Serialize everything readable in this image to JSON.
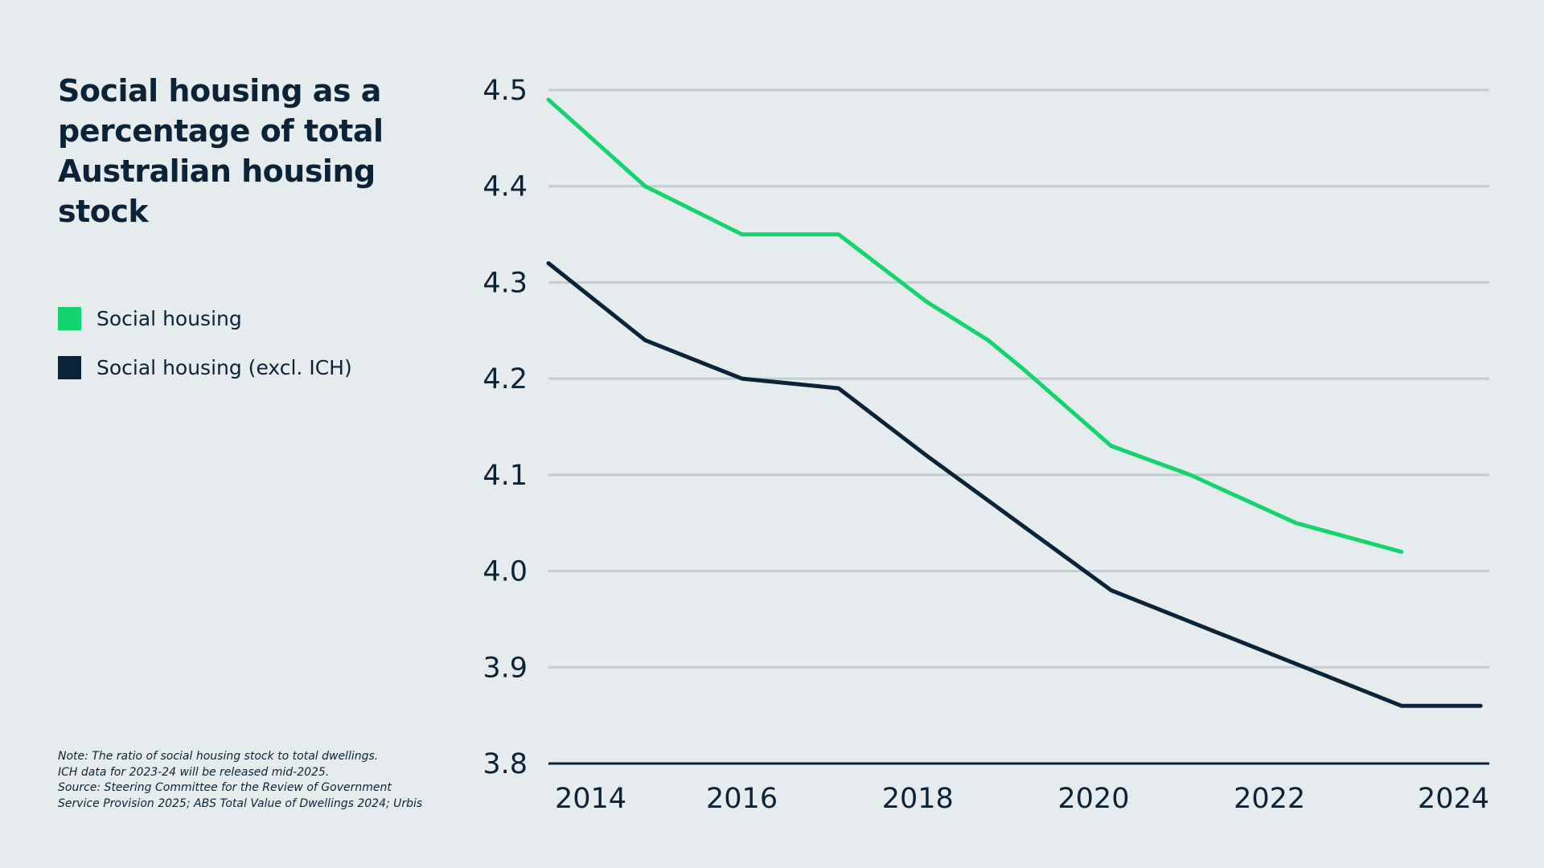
{
  "title": "Social housing as a percentage of total Australian housing stock",
  "legend": {
    "items": [
      {
        "label": "Social housing",
        "color": "#14d46e"
      },
      {
        "label": "Social housing (excl. ICH)",
        "color": "#0b2338"
      }
    ]
  },
  "note": {
    "lines": [
      "Note: The ratio of social housing stock to total dwellings.",
      "ICH data for 2023-24 will be released mid-2025.",
      "Source: Steering Committee for the Review of Government",
      "Service Provision 2025; ABS Total Value of Dwellings 2024; Urbis"
    ]
  },
  "chart_data": {
    "type": "line",
    "title": "Social housing as a percentage of total Australian housing stock",
    "xlabel": "",
    "ylabel": "",
    "xlim": [
      2013.8,
      2024.5
    ],
    "ylim": [
      3.8,
      4.5
    ],
    "x_ticks": [
      2014,
      2016,
      2018,
      2020,
      2022,
      2024
    ],
    "y_ticks": [
      3.8,
      3.9,
      4.0,
      4.1,
      4.2,
      4.3,
      4.4,
      4.5
    ],
    "y_tick_labels": [
      "3.8",
      "3.9",
      "4.0",
      "4.1",
      "4.2",
      "4.3",
      "4.4",
      "4.5"
    ],
    "grid": true,
    "legend_position": "left",
    "series": [
      {
        "name": "Social housing",
        "color": "#14d46e",
        "x": [
          2013.8,
          2014.9,
          2016.0,
          2017.1,
          2018.1,
          2018.8,
          2019.2,
          2020.2,
          2021.1,
          2022.3,
          2023.5
        ],
        "y": [
          4.49,
          4.4,
          4.35,
          4.35,
          4.28,
          4.24,
          4.21,
          4.13,
          4.1,
          4.05,
          4.02
        ]
      },
      {
        "name": "Social housing (excl. ICH)",
        "color": "#0b2338",
        "x": [
          2013.8,
          2014.9,
          2016.0,
          2017.1,
          2018.1,
          2019.0,
          2020.2,
          2021.3,
          2022.4,
          2023.5,
          2024.4
        ],
        "y": [
          4.32,
          4.24,
          4.2,
          4.19,
          4.12,
          4.06,
          3.98,
          3.94,
          3.9,
          3.86,
          3.86
        ]
      }
    ]
  }
}
